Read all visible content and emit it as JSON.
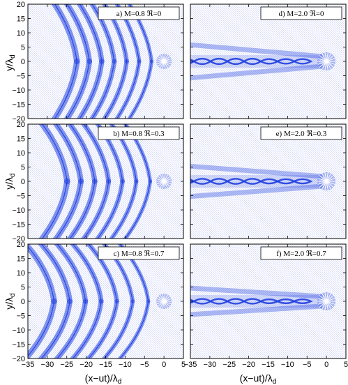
{
  "figure": {
    "xlabel": "(x−ut)/λ",
    "xlabel_sub": "d",
    "ylabel": "y/λ",
    "ylabel_sub": "d",
    "xticks": [
      -35,
      -30,
      -25,
      -20,
      -15,
      -10,
      -5,
      0,
      5
    ],
    "yticks": [
      20,
      15,
      10,
      5,
      0,
      -5,
      -10,
      -15,
      -20
    ],
    "xlim": [
      -35,
      5
    ],
    "ylim": [
      -20,
      20
    ],
    "line_color": "#1f3fe0",
    "panels": [
      {
        "label": "a) M=0.8 ℜ=0",
        "M": 0.8,
        "R": 0,
        "row": 0,
        "col": 0
      },
      {
        "label": "d) M=2.0 ℜ=0",
        "M": 2.0,
        "R": 0,
        "row": 0,
        "col": 1
      },
      {
        "label": "b) M=0.8 ℜ=0.3",
        "M": 0.8,
        "R": 0.3,
        "row": 1,
        "col": 0
      },
      {
        "label": "e) M=2.0 ℜ=0.3",
        "M": 2.0,
        "R": 0.3,
        "row": 1,
        "col": 1
      },
      {
        "label": "c) M=0.8 ℜ=0.7",
        "M": 0.8,
        "R": 0.7,
        "row": 2,
        "col": 0
      },
      {
        "label": "f) M=2.0 ℜ=0.7",
        "M": 2.0,
        "R": 0.7,
        "row": 2,
        "col": 1
      }
    ]
  },
  "chart_data": [
    {
      "type": "heatmap",
      "title": "a) M=0.8 ℜ=0",
      "xlabel": "",
      "ylabel": "y/λd",
      "xlim": [
        -35,
        5
      ],
      "ylim": [
        -20,
        20
      ]
    },
    {
      "type": "heatmap",
      "title": "d) M=2.0 ℜ=0",
      "xlabel": "",
      "ylabel": "",
      "xlim": [
        -35,
        5
      ],
      "ylim": [
        -20,
        20
      ]
    },
    {
      "type": "heatmap",
      "title": "b) M=0.8 ℜ=0.3",
      "xlabel": "",
      "ylabel": "y/λd",
      "xlim": [
        -35,
        5
      ],
      "ylim": [
        -20,
        20
      ]
    },
    {
      "type": "heatmap",
      "title": "e) M=2.0 ℜ=0.3",
      "xlabel": "",
      "ylabel": "",
      "xlim": [
        -35,
        5
      ],
      "ylim": [
        -20,
        20
      ]
    },
    {
      "type": "heatmap",
      "title": "c) M=0.8 ℜ=0.7",
      "xlabel": "(x−ut)/λd",
      "ylabel": "y/λd",
      "xlim": [
        -35,
        5
      ],
      "ylim": [
        -20,
        20
      ]
    },
    {
      "type": "heatmap",
      "title": "f) M=2.0 ℜ=0.7",
      "xlabel": "(x−ut)/λd",
      "ylabel": "",
      "xlim": [
        -35,
        5
      ],
      "ylim": [
        -20,
        20
      ]
    }
  ]
}
